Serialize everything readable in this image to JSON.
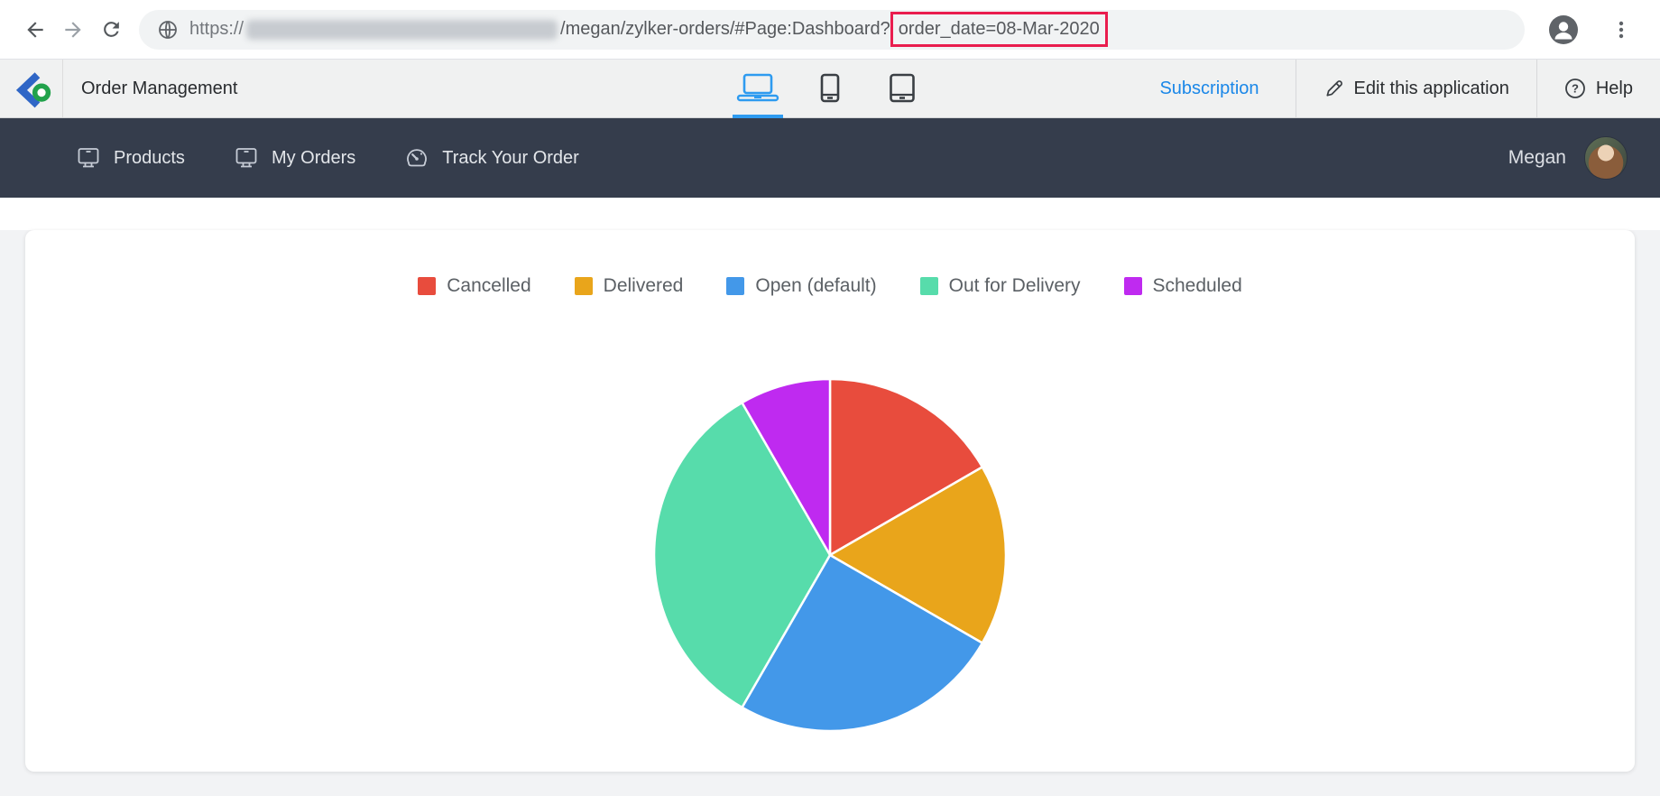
{
  "browser": {
    "icons": [
      "back-arrow",
      "forward-arrow",
      "reload",
      "globe",
      "profile",
      "kebab-menu"
    ],
    "url": {
      "scheme": "https://",
      "domain_blurred": true,
      "path": "/megan/zylker-orders/#Page:Dashboard?",
      "highlighted_query": "order_date=08-Mar-2020",
      "highlight_color": "#e91d4e"
    }
  },
  "app_header": {
    "title": "Order Management",
    "subscription_label": "Subscription",
    "edit_label": "Edit this application",
    "help_label": "Help",
    "active_device": "desktop",
    "accent_color": "#2e9bf0",
    "link_color": "#1a87e8"
  },
  "nav": {
    "bg_color": "#353d4c",
    "items": [
      {
        "label": "Products",
        "icon": "monitor-icon"
      },
      {
        "label": "My Orders",
        "icon": "monitor-icon"
      },
      {
        "label": "Track Your Order",
        "icon": "gauge-icon"
      }
    ],
    "user_name": "Megan"
  },
  "chart_data": {
    "type": "pie",
    "title": "",
    "legend_position": "top",
    "direction": "clockwise",
    "start_angle_deg": 0,
    "series": [
      {
        "name": "Cancelled",
        "color": "#e84c3d",
        "angle_deg": 60,
        "percent": 16.7
      },
      {
        "name": "Delivered",
        "color": "#e9a51b",
        "angle_deg": 60,
        "percent": 16.7
      },
      {
        "name": "Open (default)",
        "color": "#4398e9",
        "angle_deg": 90,
        "percent": 25.0
      },
      {
        "name": "Out for Delivery",
        "color": "#57dcab",
        "angle_deg": 120,
        "percent": 33.3
      },
      {
        "name": "Scheduled",
        "color": "#bf2af0",
        "angle_deg": 30,
        "percent": 8.3
      }
    ]
  }
}
